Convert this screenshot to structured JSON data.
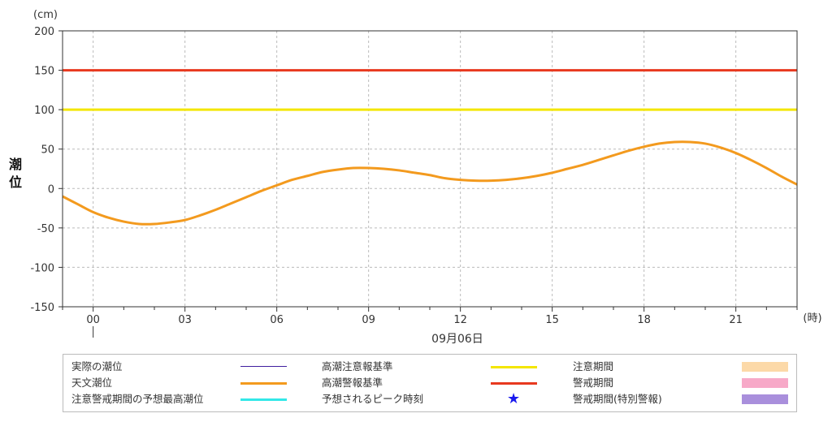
{
  "chart_data": {
    "type": "line",
    "unit_label": "(cm)",
    "ylabel": "潮位",
    "xunit_label": "(時)",
    "date_label": "09月06日",
    "ylim": [
      -150,
      200
    ],
    "yticks": [
      -150,
      -100,
      -50,
      0,
      50,
      100,
      150,
      200
    ],
    "xlim": [
      -1,
      23
    ],
    "xticks": [
      0,
      3,
      6,
      9,
      12,
      15,
      18,
      21
    ],
    "xticklabels": [
      "00",
      "03",
      "06",
      "09",
      "12",
      "15",
      "18",
      "21"
    ],
    "grid": true,
    "thresholds": [
      {
        "name": "高潮注意報基準",
        "value": 100,
        "color": "#f4e600"
      },
      {
        "name": "高潮警報基準",
        "value": 150,
        "color": "#e8391f"
      }
    ],
    "series": [
      {
        "name": "天文潮位",
        "color": "#f39a1e",
        "x": [
          -1,
          -0.5,
          0,
          0.5,
          1,
          1.5,
          2,
          2.5,
          3,
          3.5,
          4,
          4.5,
          5,
          5.5,
          6,
          6.5,
          7,
          7.5,
          8,
          8.5,
          9,
          9.5,
          10,
          10.5,
          11,
          11.5,
          12,
          12.5,
          13,
          13.5,
          14,
          14.5,
          15,
          15.5,
          16,
          16.5,
          17,
          17.5,
          18,
          18.5,
          19,
          19.5,
          20,
          20.5,
          21,
          21.5,
          22,
          22.5,
          23
        ],
        "y": [
          -10,
          -20,
          -30,
          -37,
          -42,
          -45,
          -45,
          -43,
          -40,
          -34,
          -27,
          -19,
          -11,
          -3,
          4,
          11,
          16,
          21,
          24,
          26,
          26,
          25,
          23,
          20,
          17,
          13,
          11,
          10,
          10,
          11,
          13,
          16,
          20,
          25,
          30,
          36,
          42,
          48,
          53,
          57,
          59,
          59,
          57,
          52,
          45,
          36,
          26,
          15,
          5
        ]
      }
    ],
    "legend": {
      "col1": [
        {
          "label": "実際の潮位",
          "kind": "line",
          "color": "#3f1f9f"
        },
        {
          "label": "天文潮位",
          "kind": "line",
          "color": "#f39a1e"
        },
        {
          "label": "注意警戒期間の予想最高潮位",
          "kind": "line",
          "color": "#33e8e8"
        }
      ],
      "col2": [
        {
          "label": "高潮注意報基準",
          "kind": "line",
          "color": "#f4e600"
        },
        {
          "label": "高潮警報基準",
          "kind": "line",
          "color": "#e8391f"
        },
        {
          "label": "予想されるピーク時刻",
          "kind": "star",
          "color": "#1a1aee"
        }
      ],
      "col3": [
        {
          "label": "注意期間",
          "kind": "box",
          "color": "#fcd9a8"
        },
        {
          "label": "警戒期間",
          "kind": "box",
          "color": "#f7a9c8"
        },
        {
          "label": "警戒期間(特別警報)",
          "kind": "box",
          "color": "#a98fdc"
        }
      ]
    }
  }
}
